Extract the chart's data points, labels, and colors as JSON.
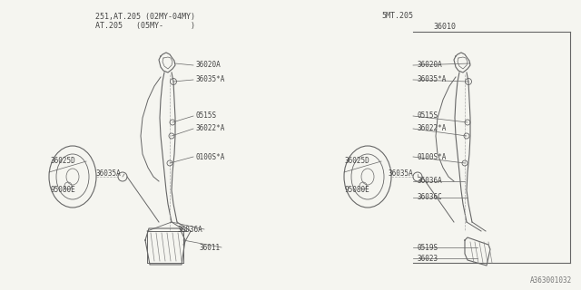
{
  "bg_color": "#f5f5f0",
  "line_color": "#666666",
  "text_color": "#444444",
  "fig_width": 6.4,
  "fig_height": 3.2,
  "dpi": 100,
  "left_title1": "251,AT.205 (02MY-04MY)",
  "left_title2": "AT.205   (05MY-      )",
  "right_title1": "5MT.205",
  "part_label_36010": "36010",
  "watermark": "A363001032",
  "label_fs": 5.5,
  "title_fs": 6.0
}
